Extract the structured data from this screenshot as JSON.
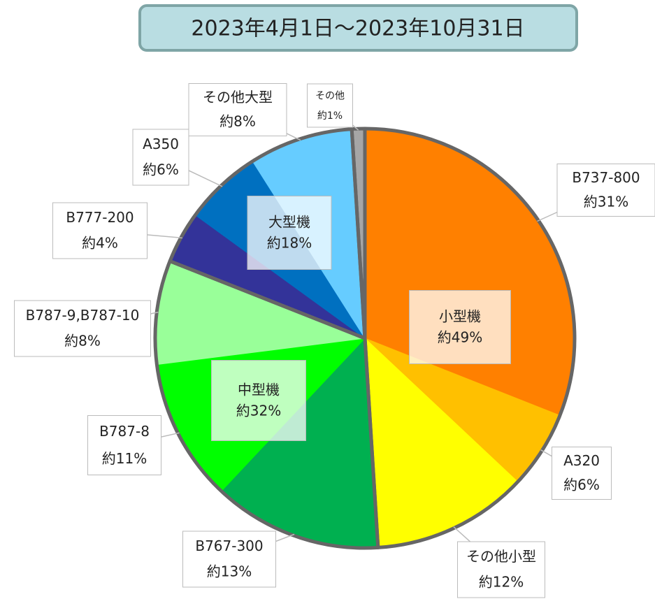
{
  "chart_data": {
    "type": "pie",
    "title": "2023年4月1日～2023年10月31日",
    "groups": [
      {
        "name": "小型機",
        "value": 49,
        "value_label": "約49%",
        "slices": [
          {
            "name": "B737-800",
            "value": 31,
            "value_label": "約31%",
            "color": "#ff8000"
          },
          {
            "name": "A320",
            "value": 6,
            "value_label": "約6%",
            "color": "#ffc000"
          },
          {
            "name": "その他小型",
            "value": 12,
            "value_label": "約12%",
            "color": "#ffff00"
          }
        ]
      },
      {
        "name": "中型機",
        "value": 32,
        "value_label": "約32%",
        "slices": [
          {
            "name": "B767-300",
            "value": 13,
            "value_label": "約13%",
            "color": "#00b050"
          },
          {
            "name": "B787-8",
            "value": 11,
            "value_label": "約11%",
            "color": "#00ff00"
          },
          {
            "name": "B787-9,B787-10",
            "value": 8,
            "value_label": "約8%",
            "color": "#99ff99"
          }
        ]
      },
      {
        "name": "大型機",
        "value": 18,
        "value_label": "約18%",
        "slices": [
          {
            "name": "B777-200",
            "value": 4,
            "value_label": "約4%",
            "color": "#333399"
          },
          {
            "name": "A350",
            "value": 6,
            "value_label": "約6%",
            "color": "#0070c0"
          },
          {
            "name": "その他大型",
            "value": 8,
            "value_label": "約8%",
            "color": "#66ccff"
          }
        ]
      },
      {
        "slices": [
          {
            "name": "その他",
            "value": 1,
            "value_label": "約1%",
            "color": "#a6a6a6"
          }
        ]
      }
    ]
  }
}
